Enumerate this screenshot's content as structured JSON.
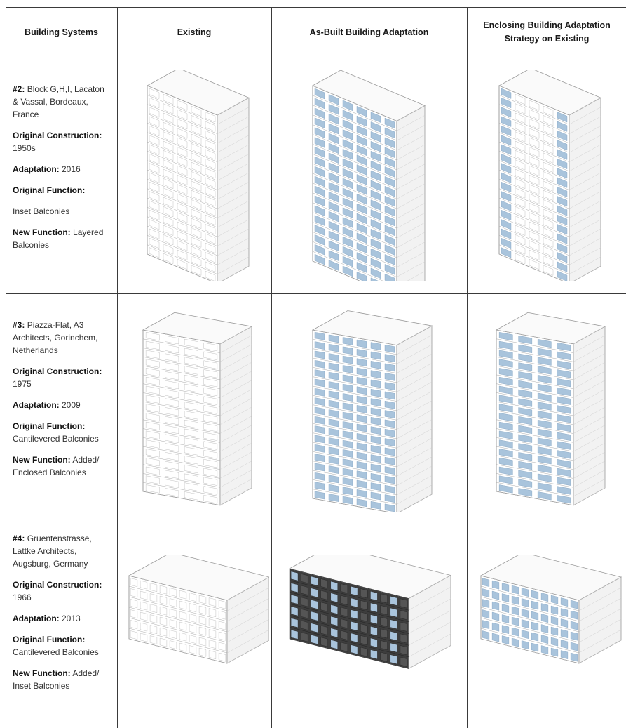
{
  "headers": [
    "Building Systems",
    "Existing",
    "As-Built Building Adaptation",
    "Enclosing Building Adaptation Strategy on Existing"
  ],
  "rows": [
    {
      "number": "#2:",
      "project": "Block G,H,I, Lacaton & Vassal, Bordeaux, France",
      "construction_label": "Original Construction:",
      "construction": "1950s",
      "adaptation_label": "Adaptation:",
      "adaptation": "2016",
      "orig_function_label": "Original Function:",
      "orig_function": "Inset Balconies",
      "new_function_label": "New Function:",
      "new_function": "Layered Balconies"
    },
    {
      "number": "#3:",
      "project": "Piazza-Flat, A3 Architects, Gorinchem, Netherlands",
      "construction_label": "Original Construction:",
      "construction": "1975",
      "adaptation_label": "Adaptation:",
      "adaptation": "2009",
      "orig_function_label": "Original Function:",
      "orig_function": "Cantilevered Balconies",
      "new_function_label": "New Function:",
      "new_function": "Added/ Enclosed Balconies"
    },
    {
      "number": "#4:",
      "project": "Gruentenstrasse, Lattke Architects, Augsburg, Germany",
      "construction_label": "Original Construction:",
      "construction": "1966",
      "adaptation_label": "Adaptation:",
      "adaptation": "2013",
      "orig_function_label": "Original Function:",
      "orig_function": "Cantilevered Balconies",
      "new_function_label": "New Function:",
      "new_function": "Added/ Inset Balconies"
    }
  ],
  "colors": {
    "glass": "#a9c4dc",
    "glass_dark": "#7f9fbe",
    "dark_facade": "#3d3d3d",
    "outline": "#9a9a9a"
  }
}
